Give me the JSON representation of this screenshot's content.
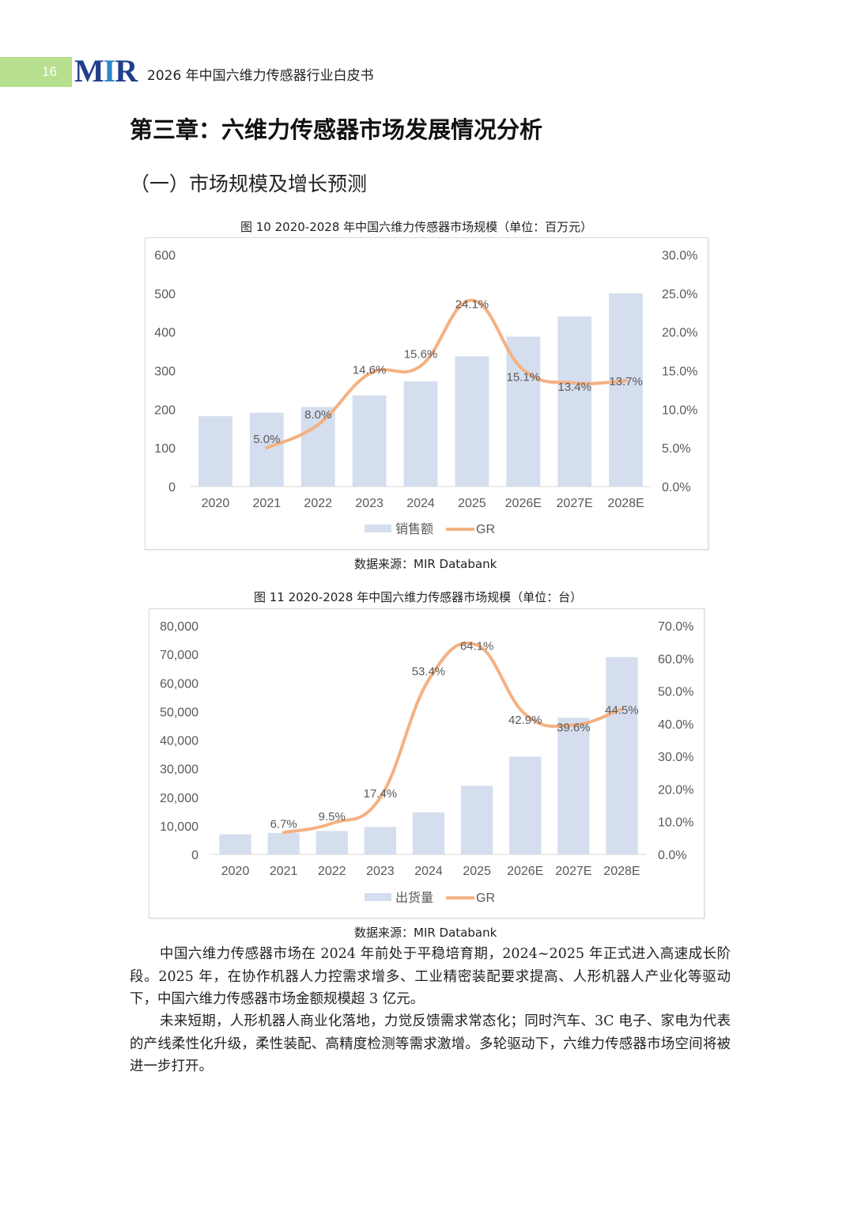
{
  "header": {
    "page_number": "16",
    "logo_text": "MIR",
    "doc_title": "2026 年中国六维力传感器行业白皮书"
  },
  "chapter_title": "第三章：六维力传感器市场发展情况分析",
  "section_title": "（一）市场规模及增长预测",
  "figures": [
    {
      "caption": "图  10 2020-2028 年中国六维力传感器市场规模（单位：百万元）",
      "source": "数据来源：MIR Databank"
    },
    {
      "caption": "图  11 2020-2028 年中国六维力传感器市场规模（单位：台）",
      "source": "数据来源：MIR Databank"
    }
  ],
  "chart_data": [
    {
      "type": "bar",
      "categories": [
        "2020",
        "2021",
        "2022",
        "2023",
        "2024",
        "2025",
        "2026E",
        "2027E",
        "2028E"
      ],
      "series": [
        {
          "name": "销售额",
          "type": "bar",
          "axis": "left",
          "values": [
            182,
            191,
            206,
            236,
            272,
            337,
            388,
            440,
            500
          ]
        },
        {
          "name": "GR",
          "type": "line",
          "axis": "right",
          "values": [
            null,
            5.0,
            8.0,
            14.6,
            15.6,
            24.1,
            15.1,
            13.4,
            13.7
          ],
          "labels": [
            "",
            "5.0%",
            "8.0%",
            "14.6%",
            "15.6%",
            "24.1%",
            "15.1%",
            "13.4%",
            "13.7%"
          ]
        }
      ],
      "y_left": {
        "min": 0,
        "max": 600,
        "ticks": [
          "0",
          "100",
          "200",
          "300",
          "400",
          "500",
          "600"
        ]
      },
      "y_right": {
        "min": 0,
        "max": 30,
        "ticks": [
          "0.0%",
          "5.0%",
          "10.0%",
          "15.0%",
          "20.0%",
          "25.0%",
          "30.0%"
        ]
      },
      "legend_position": "bottom",
      "colors": {
        "bar": "#d5deee",
        "line": "#f4b183",
        "text": "#595959"
      }
    },
    {
      "type": "bar",
      "categories": [
        "2020",
        "2021",
        "2022",
        "2023",
        "2024",
        "2025",
        "2026E",
        "2027E",
        "2028E"
      ],
      "series": [
        {
          "name": "出货量",
          "type": "bar",
          "axis": "left",
          "values": [
            7000,
            7500,
            8200,
            9600,
            14700,
            24000,
            34200,
            47800,
            69000
          ]
        },
        {
          "name": "GR",
          "type": "line",
          "axis": "right",
          "values": [
            null,
            6.7,
            9.5,
            17.4,
            53.4,
            64.1,
            42.9,
            39.6,
            44.5
          ],
          "labels": [
            "",
            "6.7%",
            "9.5%",
            "17.4%",
            "53.4%",
            "64.1%",
            "42.9%",
            "39.6%",
            "44.5%"
          ]
        }
      ],
      "y_left": {
        "min": 0,
        "max": 80000,
        "ticks": [
          "0",
          "10,000",
          "20,000",
          "30,000",
          "40,000",
          "50,000",
          "60,000",
          "70,000",
          "80,000"
        ]
      },
      "y_right": {
        "min": 0,
        "max": 70,
        "ticks": [
          "0.0%",
          "10.0%",
          "20.0%",
          "30.0%",
          "40.0%",
          "50.0%",
          "60.0%",
          "70.0%"
        ]
      },
      "legend_position": "bottom",
      "colors": {
        "bar": "#d5deee",
        "line": "#f4b183",
        "text": "#595959"
      }
    }
  ],
  "paragraphs": [
    "中国六维力传感器市场在 2024 年前处于平稳培育期，2024~2025 年正式进入高速成长阶段。2025 年，在协作机器人力控需求增多、工业精密装配要求提高、人形机器人产业化等驱动下，中国六维力传感器市场金额规模超 3 亿元。",
    "未来短期，人形机器人商业化落地，力觉反馈需求常态化；同时汽车、3C 电子、家电为代表的产线柔性化升级，柔性装配、高精度检测等需求激增。多轮驱动下，六维力传感器市场空间将被进一步打开。"
  ]
}
